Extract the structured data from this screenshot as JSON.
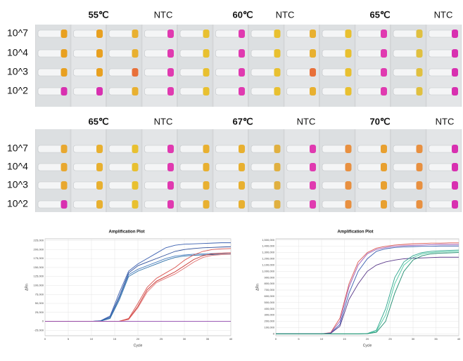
{
  "panels": [
    {
      "headers": [
        "55℃",
        "NTC",
        "60℃",
        "NTC",
        "65℃",
        "NTC"
      ],
      "rows": [
        "10^7",
        "10^4",
        "10^3",
        "10^2"
      ]
    },
    {
      "headers": [
        "65℃",
        "NTC",
        "67℃",
        "NTC",
        "70℃",
        "NTC"
      ],
      "rows": [
        "10^7",
        "10^4",
        "10^3",
        "10^2"
      ]
    }
  ],
  "chart_data": [
    {
      "type": "line",
      "title": "Amplification Plot",
      "x_label": "Cycle",
      "y_label": "ΔRn",
      "x": [
        0,
        2,
        4,
        6,
        8,
        10,
        12,
        14,
        16,
        18,
        20,
        22,
        24,
        26,
        28,
        30,
        32,
        34,
        36,
        38,
        40
      ],
      "xlim": [
        0,
        40
      ],
      "xticks": [
        0,
        5,
        10,
        15,
        20,
        25,
        30,
        35,
        40
      ],
      "ylim": [
        -40000,
        230000
      ],
      "yticks": [
        {
          "value": -25000,
          "label": "-25,000"
        },
        0,
        {
          "value": 25000,
          "label": "25,000"
        },
        {
          "value": 50000,
          "label": "50,000"
        },
        {
          "value": 75000,
          "label": "75,000"
        },
        {
          "value": 100000,
          "label": "100,000"
        },
        {
          "value": 125000,
          "label": "125,000"
        },
        {
          "value": 150000,
          "label": "150,000"
        },
        {
          "value": 175000,
          "label": "175,000"
        },
        {
          "value": 200000,
          "label": "200,000"
        },
        {
          "value": 225000,
          "label": "225,000"
        }
      ],
      "grid": true,
      "series": [
        {
          "color": "#3a5fb0",
          "values": [
            0,
            0,
            0,
            0,
            0,
            0,
            2000,
            15000,
            80000,
            140000,
            160000,
            175000,
            190000,
            205000,
            212000,
            215000,
            216000,
            217000,
            218000,
            219000,
            219000
          ]
        },
        {
          "color": "#2f4f9a",
          "values": [
            0,
            0,
            0,
            0,
            0,
            0,
            1500,
            12000,
            70000,
            135000,
            155000,
            165000,
            175000,
            185000,
            195000,
            200000,
            203000,
            205000,
            206000,
            207000,
            208000
          ]
        },
        {
          "color": "#4a7fc0",
          "values": [
            0,
            0,
            0,
            0,
            0,
            0,
            1000,
            10000,
            65000,
            130000,
            145000,
            155000,
            165000,
            175000,
            182000,
            185000,
            187000,
            188000,
            189000,
            190000,
            191000
          ]
        },
        {
          "color": "#2b6fa8",
          "values": [
            0,
            0,
            0,
            0,
            0,
            0,
            800,
            8000,
            60000,
            125000,
            140000,
            150000,
            160000,
            170000,
            178000,
            182000,
            184000,
            185000,
            186000,
            187000,
            188000
          ]
        },
        {
          "color": "#d9534f",
          "values": [
            0,
            0,
            0,
            0,
            0,
            0,
            0,
            0,
            500,
            8000,
            50000,
            95000,
            120000,
            135000,
            150000,
            170000,
            185000,
            195000,
            200000,
            202000,
            203000
          ]
        },
        {
          "color": "#c9302c",
          "values": [
            0,
            0,
            0,
            0,
            0,
            0,
            0,
            0,
            300,
            6000,
            42000,
            88000,
            112000,
            125000,
            138000,
            155000,
            172000,
            183000,
            188000,
            190000,
            191000
          ]
        },
        {
          "color": "#e07070",
          "values": [
            0,
            0,
            0,
            0,
            0,
            0,
            0,
            0,
            200,
            5000,
            38000,
            82000,
            108000,
            120000,
            132000,
            148000,
            165000,
            178000,
            184000,
            186000,
            187000
          ]
        },
        {
          "color": "#8e44ad",
          "values": [
            0,
            0,
            0,
            0,
            0,
            0,
            0,
            0,
            0,
            0,
            0,
            0,
            0,
            0,
            0,
            0,
            0,
            0,
            0,
            0,
            0
          ]
        }
      ]
    },
    {
      "type": "line",
      "title": "Amplification Plot",
      "x_label": "Cycle",
      "y_label": "ΔRn",
      "x": [
        0,
        2,
        4,
        6,
        8,
        10,
        12,
        14,
        16,
        18,
        20,
        22,
        24,
        26,
        28,
        30,
        32,
        34,
        36,
        38,
        40
      ],
      "xlim": [
        0,
        40
      ],
      "xticks": [
        0,
        5,
        10,
        15,
        20,
        25,
        30,
        35,
        40
      ],
      "ylim": [
        -30000,
        1520000
      ],
      "yticks": [
        0,
        {
          "value": 100000,
          "label": "100,000"
        },
        {
          "value": 200000,
          "label": "200,000"
        },
        {
          "value": 300000,
          "label": "300,000"
        },
        {
          "value": 400000,
          "label": "400,000"
        },
        {
          "value": 500000,
          "label": "500,000"
        },
        {
          "value": 600000,
          "label": "600,000"
        },
        {
          "value": 700000,
          "label": "700,000"
        },
        {
          "value": 800000,
          "label": "800,000"
        },
        {
          "value": 900000,
          "label": "900,000"
        },
        {
          "value": 1000000,
          "label": "1,000,000"
        },
        {
          "value": 1100000,
          "label": "1,100,000"
        },
        {
          "value": 1200000,
          "label": "1,200,000"
        },
        {
          "value": 1300000,
          "label": "1,300,000"
        },
        {
          "value": 1400000,
          "label": "1,400,000"
        },
        {
          "value": 1500000,
          "label": "1,500,000"
        }
      ],
      "grid": true,
      "series": [
        {
          "color": "#d9534f",
          "values": [
            0,
            0,
            0,
            0,
            0,
            0,
            20000,
            250000,
            800000,
            1150000,
            1300000,
            1370000,
            1400000,
            1420000,
            1430000,
            1440000,
            1445000,
            1450000,
            1450000,
            1455000,
            1455000
          ]
        },
        {
          "color": "#9b59b6",
          "values": [
            0,
            0,
            0,
            0,
            0,
            0,
            15000,
            200000,
            750000,
            1100000,
            1280000,
            1350000,
            1380000,
            1400000,
            1410000,
            1415000,
            1420000,
            1425000,
            1430000,
            1430000,
            1430000
          ]
        },
        {
          "color": "#3a5fb0",
          "values": [
            0,
            0,
            0,
            0,
            0,
            0,
            10000,
            150000,
            650000,
            1000000,
            1200000,
            1320000,
            1360000,
            1380000,
            1390000,
            1395000,
            1400000,
            1400000,
            1405000,
            1405000,
            1405000
          ]
        },
        {
          "color": "#5b3a8a",
          "values": [
            0,
            0,
            0,
            0,
            0,
            0,
            8000,
            120000,
            550000,
            800000,
            1000000,
            1100000,
            1150000,
            1180000,
            1200000,
            1210000,
            1215000,
            1220000,
            1225000,
            1225000,
            1225000
          ]
        },
        {
          "color": "#2ca58d",
          "values": [
            0,
            0,
            0,
            0,
            0,
            0,
            0,
            0,
            0,
            0,
            5000,
            60000,
            400000,
            900000,
            1150000,
            1250000,
            1300000,
            1320000,
            1330000,
            1335000,
            1340000
          ]
        },
        {
          "color": "#48c9a0",
          "values": [
            0,
            0,
            0,
            0,
            0,
            0,
            0,
            0,
            0,
            0,
            3000,
            40000,
            300000,
            800000,
            1100000,
            1220000,
            1280000,
            1300000,
            1310000,
            1315000,
            1320000
          ]
        },
        {
          "color": "#1e8c6e",
          "values": [
            0,
            0,
            0,
            0,
            0,
            0,
            0,
            0,
            0,
            0,
            2000,
            25000,
            200000,
            650000,
            1000000,
            1180000,
            1250000,
            1280000,
            1290000,
            1295000,
            1300000
          ]
        }
      ]
    }
  ]
}
